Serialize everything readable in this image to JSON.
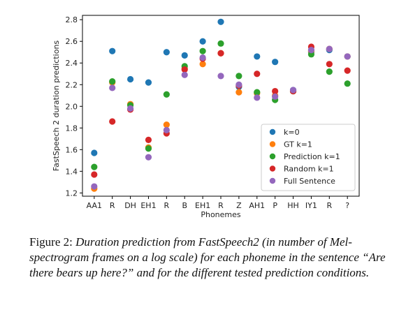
{
  "chart_data": {
    "type": "scatter",
    "xlabel": "Phonemes",
    "ylabel": "FastSpeech 2 duration predictions",
    "categories": [
      "AA1",
      "R",
      "DH",
      "EH1",
      "R",
      "B",
      "EH1",
      "R",
      "Z",
      "AH1",
      "P",
      "HH",
      "IY1",
      "R",
      "?"
    ],
    "ylim": [
      1.17,
      2.84
    ],
    "yticks": [
      1.2,
      1.4,
      1.6,
      1.8,
      2.0,
      2.2,
      2.4,
      2.6,
      2.8
    ],
    "ytick_labels": [
      "1.2",
      "1.4",
      "1.6",
      "1.8",
      "2.0",
      "2.2",
      "2.4",
      "2.6",
      "2.8"
    ],
    "grid": false,
    "legend_position": "lower-right",
    "series": [
      {
        "name": "k=0",
        "color": "#1f77b4",
        "values": [
          1.57,
          2.51,
          2.25,
          2.22,
          2.5,
          2.47,
          2.6,
          2.78,
          2.18,
          2.46,
          2.41,
          2.15,
          2.5,
          2.52,
          2.46
        ]
      },
      {
        "name": "GT k=1",
        "color": "#ff7f0e",
        "values": [
          1.24,
          2.22,
          2.02,
          1.62,
          1.83,
          2.35,
          2.39,
          2.49,
          2.13,
          2.12,
          2.1,
          2.14,
          2.51,
          2.53,
          2.46
        ]
      },
      {
        "name": "Prediction k=1",
        "color": "#2ca02c",
        "values": [
          1.44,
          2.23,
          2.01,
          1.61,
          2.11,
          2.37,
          2.51,
          2.58,
          2.28,
          2.13,
          2.06,
          2.14,
          2.48,
          2.32,
          2.21
        ]
      },
      {
        "name": "Random k=1",
        "color": "#d62728",
        "values": [
          1.37,
          1.86,
          1.97,
          1.69,
          1.75,
          2.34,
          2.44,
          2.49,
          2.19,
          2.3,
          2.14,
          2.14,
          2.55,
          2.39,
          2.33
        ]
      },
      {
        "name": "Full Sentence",
        "color": "#9467bd",
        "values": [
          1.26,
          2.17,
          1.98,
          1.53,
          1.78,
          2.29,
          2.45,
          2.28,
          2.2,
          2.08,
          2.09,
          2.15,
          2.52,
          2.53,
          2.46
        ]
      }
    ]
  },
  "caption": {
    "prefix": "Figure 2:",
    "text": "Duration prediction from FastSpeech2 (in number of Mel-spectrogram frames on a log scale) for each phoneme in the sentence “Are there bears up here?” and for the different tested prediction conditions."
  }
}
